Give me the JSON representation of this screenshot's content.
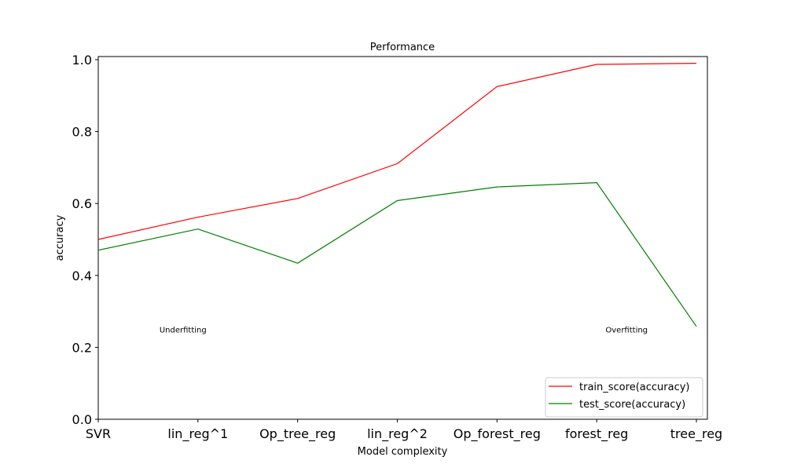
{
  "chart_data": {
    "type": "line",
    "title": "Performance",
    "xlabel": "Model complexity",
    "ylabel": "accuracy",
    "categories": [
      "SVR",
      "lin_reg^1",
      "Op_tree_reg",
      "lin_reg^2",
      "Op_forest_reg",
      "forest_reg",
      "tree_reg"
    ],
    "ylim": [
      0,
      1.0
    ],
    "yticks": [
      "0.0",
      "0.2",
      "0.4",
      "0.6",
      "0.8",
      "1.0"
    ],
    "series": [
      {
        "name": "train_score(accuracy)",
        "color": "#ff0000",
        "values": [
          0.5,
          0.562,
          0.614,
          0.711,
          0.925,
          0.987,
          0.99
        ]
      },
      {
        "name": "test_score(accuracy)",
        "color": "#008000",
        "values": [
          0.47,
          0.529,
          0.434,
          0.608,
          0.646,
          0.658,
          0.258
        ]
      }
    ],
    "annotations": [
      {
        "text": "Underfitting",
        "x": 0.85,
        "y": 0.25
      },
      {
        "text": "Overfitting",
        "x": 5.3,
        "y": 0.25
      }
    ],
    "legend_position": "bottom-right",
    "grid": false
  }
}
